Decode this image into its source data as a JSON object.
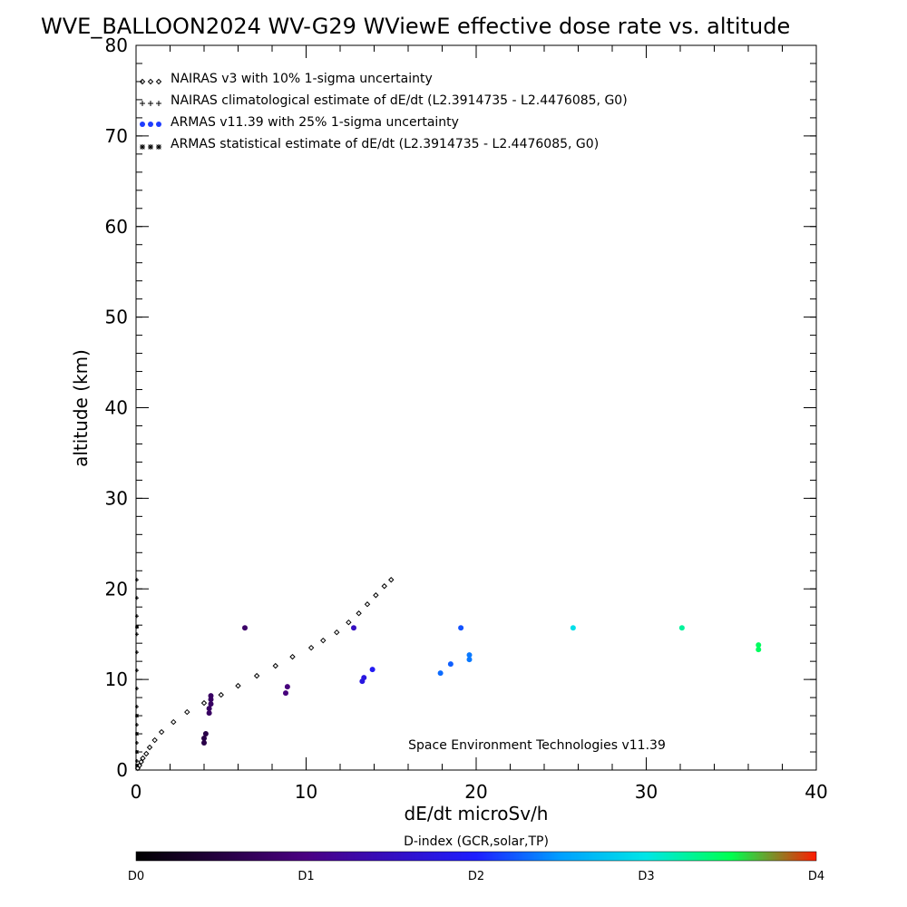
{
  "chart_data": {
    "type": "scatter",
    "title": "WVE_BALLOON2024 WV-G29 WViewE effective dose rate vs. altitude",
    "xlabel": "dE/dt microSv/h",
    "ylabel": "altitude (km)",
    "xlim": [
      0,
      40
    ],
    "ylim": [
      0,
      80
    ],
    "x_ticks": [
      "0",
      "10",
      "20",
      "30",
      "40"
    ],
    "y_ticks": [
      "0",
      "10",
      "20",
      "30",
      "40",
      "50",
      "60",
      "70",
      "80"
    ],
    "grid": false,
    "legend_position": "top-left",
    "legend": [
      {
        "marker": "diamond",
        "label": "NAIRAS v3 with 10% 1-sigma uncertainty"
      },
      {
        "marker": "plus",
        "label": "NAIRAS climatological estimate of dE/dt (L2.3914735 - L2.4476085, G0)"
      },
      {
        "marker": "dot",
        "label": "ARMAS v11.39 with 25% 1-sigma uncertainty"
      },
      {
        "marker": "asterisk",
        "label": "ARMAS statistical estimate of dE/dt (L2.3914735 - L2.4476085, G0)"
      }
    ],
    "annotation": "Space Environment Technologies v11.39",
    "series": [
      {
        "name": "NAIRAS v3 with 10% 1-sigma uncertainty",
        "marker": "diamond",
        "color": "#000000",
        "points": [
          [
            0.1,
            0.2
          ],
          [
            0.2,
            0.5
          ],
          [
            0.3,
            0.9
          ],
          [
            0.4,
            1.3
          ],
          [
            0.6,
            1.8
          ],
          [
            0.8,
            2.5
          ],
          [
            1.1,
            3.3
          ],
          [
            1.5,
            4.2
          ],
          [
            2.2,
            5.3
          ],
          [
            3.0,
            6.4
          ],
          [
            4.0,
            7.4
          ],
          [
            5.0,
            8.3
          ],
          [
            6.0,
            9.3
          ],
          [
            7.1,
            10.4
          ],
          [
            8.2,
            11.5
          ],
          [
            9.2,
            12.5
          ],
          [
            10.3,
            13.5
          ],
          [
            11.0,
            14.3
          ],
          [
            11.8,
            15.2
          ],
          [
            12.5,
            16.3
          ],
          [
            13.1,
            17.3
          ],
          [
            13.6,
            18.3
          ],
          [
            14.1,
            19.3
          ],
          [
            14.6,
            20.3
          ],
          [
            15.0,
            21.0
          ]
        ]
      },
      {
        "name": "NAIRAS climatological estimate of dE/dt",
        "marker": "plus",
        "color": "#000000",
        "points": [
          [
            0.0,
            1
          ],
          [
            0.0,
            3
          ],
          [
            0.0,
            5
          ],
          [
            0.0,
            7
          ],
          [
            0.0,
            9
          ],
          [
            0.0,
            11
          ],
          [
            0.0,
            13
          ],
          [
            0.0,
            15
          ],
          [
            0.0,
            17
          ],
          [
            0.0,
            19
          ],
          [
            0.0,
            21
          ]
        ]
      },
      {
        "name": "ARMAS v11.39 with 25% 1-sigma uncertainty",
        "marker": "dot",
        "points": [
          {
            "x": 4.0,
            "y": 3.0,
            "d": 0.55
          },
          {
            "x": 4.0,
            "y": 3.5,
            "d": 0.55
          },
          {
            "x": 4.1,
            "y": 4.0,
            "d": 0.55
          },
          {
            "x": 4.3,
            "y": 6.3,
            "d": 0.75
          },
          {
            "x": 4.3,
            "y": 6.8,
            "d": 0.75
          },
          {
            "x": 4.4,
            "y": 7.3,
            "d": 0.75
          },
          {
            "x": 4.4,
            "y": 7.8,
            "d": 0.75
          },
          {
            "x": 4.4,
            "y": 8.2,
            "d": 0.75
          },
          {
            "x": 6.4,
            "y": 15.7,
            "d": 0.8
          },
          {
            "x": 8.8,
            "y": 8.5,
            "d": 0.95
          },
          {
            "x": 8.9,
            "y": 9.2,
            "d": 0.95
          },
          {
            "x": 12.8,
            "y": 15.7,
            "d": 1.5
          },
          {
            "x": 13.3,
            "y": 9.8,
            "d": 1.75
          },
          {
            "x": 13.4,
            "y": 10.2,
            "d": 1.75
          },
          {
            "x": 13.9,
            "y": 11.1,
            "d": 1.9
          },
          {
            "x": 17.9,
            "y": 10.7,
            "d": 2.3
          },
          {
            "x": 18.5,
            "y": 11.7,
            "d": 2.25
          },
          {
            "x": 19.1,
            "y": 15.7,
            "d": 2.2
          },
          {
            "x": 19.6,
            "y": 12.2,
            "d": 2.35
          },
          {
            "x": 19.6,
            "y": 12.7,
            "d": 2.35
          },
          {
            "x": 25.7,
            "y": 15.7,
            "d": 2.95
          },
          {
            "x": 32.1,
            "y": 15.7,
            "d": 3.25
          },
          {
            "x": 36.6,
            "y": 13.3,
            "d": 3.45
          },
          {
            "x": 36.6,
            "y": 13.8,
            "d": 3.45
          }
        ]
      },
      {
        "name": "ARMAS statistical estimate of dE/dt",
        "marker": "asterisk",
        "color": "#000000",
        "points": [
          [
            0.0,
            0.5
          ],
          [
            0.0,
            2.0
          ],
          [
            0.0,
            4.0
          ],
          [
            0.0,
            6.0
          ],
          [
            0.0,
            15.8
          ]
        ]
      }
    ],
    "colorbar": {
      "title": "D-index (GCR,solar,TP)",
      "range": [
        0,
        4
      ],
      "ticks": [
        {
          "value": 0,
          "label": "D0"
        },
        {
          "value": 1,
          "label": "D1"
        },
        {
          "value": 2,
          "label": "D2"
        },
        {
          "value": 3,
          "label": "D3"
        },
        {
          "value": 4,
          "label": "D4"
        }
      ],
      "stops": [
        {
          "d": 0.0,
          "color": "#000000"
        },
        {
          "d": 1.0,
          "color": "#4b0082"
        },
        {
          "d": 2.0,
          "color": "#1e1eff"
        },
        {
          "d": 2.5,
          "color": "#00a0ff"
        },
        {
          "d": 3.0,
          "color": "#00e6e6"
        },
        {
          "d": 3.5,
          "color": "#00ff50"
        },
        {
          "d": 4.0,
          "color": "#ff1a00"
        }
      ]
    }
  }
}
